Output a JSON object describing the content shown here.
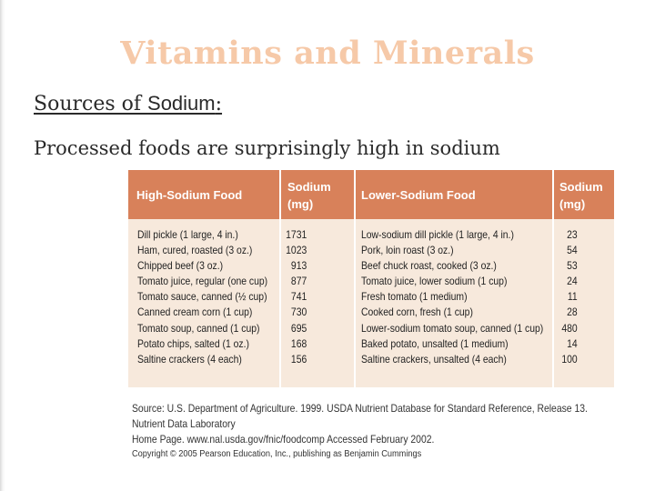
{
  "slide": {
    "title": "Vitamins and Minerals",
    "subtitle_prefix": "Sources of ",
    "subtitle_sans": "Sodium",
    "subtitle_suffix": ":",
    "body": "Processed foods are surprisingly high in sodium"
  },
  "table": {
    "headers": {
      "high_food": "High-Sodium Food",
      "high_sodium_l1": "Sodium",
      "high_sodium_l2": "(mg)",
      "low_food": "Lower-Sodium Food",
      "low_sodium_l1": "Sodium",
      "low_sodium_l2": "(mg)"
    },
    "high_foods": [
      "Dill pickle (1 large, 4 in.)",
      "Ham, cured, roasted (3 oz.)",
      "Chipped beef (3 oz.)",
      "Tomato juice, regular (one cup)",
      "Tomato sauce, canned (½ cup)",
      "Canned cream corn (1 cup)",
      "Tomato soup, canned (1 cup)",
      "Potato chips, salted (1 oz.)",
      "Saltine crackers (4 each)"
    ],
    "high_mg": [
      "1731",
      "1023",
      "913",
      "877",
      "741",
      "730",
      "695",
      "168",
      "156"
    ],
    "low_foods": [
      "Low-sodium dill pickle (1 large, 4 in.)",
      "Pork, loin roast (3 oz.)",
      "Beef chuck roast, cooked (3 oz.)",
      "Tomato juice, lower sodium (1 cup)",
      "Fresh tomato (1 medium)",
      "Cooked corn, fresh (1 cup)",
      "Lower-sodium tomato soup, canned (1 cup)",
      "Baked potato, unsalted (1 medium)",
      "Saltine crackers, unsalted (4 each)"
    ],
    "low_mg": [
      "23",
      "54",
      "53",
      "24",
      "11",
      "28",
      "480",
      "14",
      "100"
    ]
  },
  "source": {
    "line1": "Source: U.S. Department of Agriculture. 1999. USDA Nutrient Database for Standard Reference, Release 13. Nutrient Data Laboratory",
    "line2": "Home Page. www.nal.usda.gov/fnic/foodcomp Accessed February 2002."
  },
  "copyright": "Copyright © 2005 Pearson Education, Inc., publishing as Benjamin Cummings"
}
